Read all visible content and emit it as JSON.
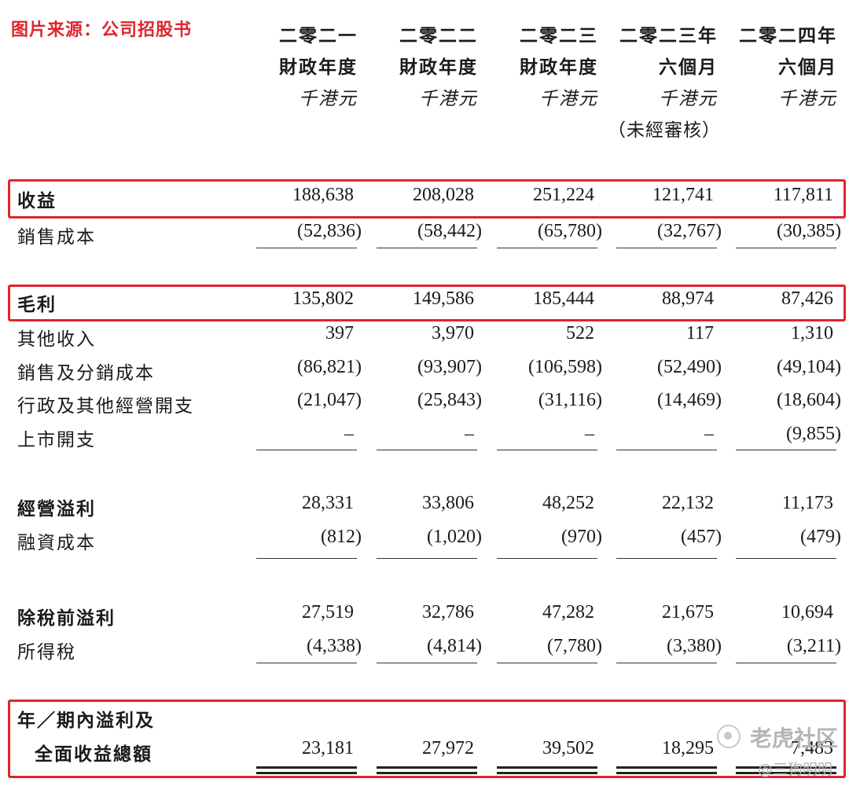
{
  "source_label": "图片来源：公司招股书",
  "columns": [
    {
      "line1": "二零二一",
      "line2": "財政年度",
      "unit": "千港元",
      "note": ""
    },
    {
      "line1": "二零二二",
      "line2": "財政年度",
      "unit": "千港元",
      "note": ""
    },
    {
      "line1": "二零二三",
      "line2": "財政年度",
      "unit": "千港元",
      "note": ""
    },
    {
      "line1": "二零二三年",
      "line2": "六個月",
      "unit": "千港元",
      "note": "（未經審核）"
    },
    {
      "line1": "二零二四年",
      "line2": "六個月",
      "unit": "千港元",
      "note": ""
    }
  ],
  "rows": [
    {
      "label": "收益",
      "bold": true,
      "values": [
        "188,638",
        "208,028",
        "251,224",
        "121,741",
        "117,811"
      ]
    },
    {
      "label": "銷售成本",
      "bold": false,
      "values": [
        "(52,836)",
        "(58,442)",
        "(65,780)",
        "(32,767)",
        "(30,385)"
      ]
    },
    {
      "label": "毛利",
      "bold": true,
      "values": [
        "135,802",
        "149,586",
        "185,444",
        "88,974",
        "87,426"
      ]
    },
    {
      "label": "其他收入",
      "bold": false,
      "values": [
        "397",
        "3,970",
        "522",
        "117",
        "1,310"
      ]
    },
    {
      "label": "銷售及分銷成本",
      "bold": false,
      "values": [
        "(86,821)",
        "(93,907)",
        "(106,598)",
        "(52,490)",
        "(49,104)"
      ]
    },
    {
      "label": "行政及其他經營開支",
      "bold": false,
      "values": [
        "(21,047)",
        "(25,843)",
        "(31,116)",
        "(14,469)",
        "(18,604)"
      ]
    },
    {
      "label": "上市開支",
      "bold": false,
      "values": [
        "–",
        "–",
        "–",
        "–",
        "(9,855)"
      ]
    },
    {
      "label": "經營溢利",
      "bold": true,
      "values": [
        "28,331",
        "33,806",
        "48,252",
        "22,132",
        "11,173"
      ]
    },
    {
      "label": "融資成本",
      "bold": false,
      "values": [
        "(812)",
        "(1,020)",
        "(970)",
        "(457)",
        "(479)"
      ]
    },
    {
      "label": "除稅前溢利",
      "bold": true,
      "values": [
        "27,519",
        "32,786",
        "47,282",
        "21,675",
        "10,694"
      ]
    },
    {
      "label": "所得稅",
      "bold": false,
      "values": [
        "(4,338)",
        "(4,814)",
        "(7,780)",
        "(3,380)",
        "(3,211)"
      ]
    },
    {
      "label": "年／期內溢利及",
      "bold": true,
      "values": []
    },
    {
      "label": "全面收益總額",
      "bold": true,
      "values": [
        "23,181",
        "27,972",
        "39,502",
        "18,295",
        "7,483"
      ]
    }
  ],
  "watermark": {
    "brand": "老虎社区",
    "user": "@三狗明明"
  }
}
